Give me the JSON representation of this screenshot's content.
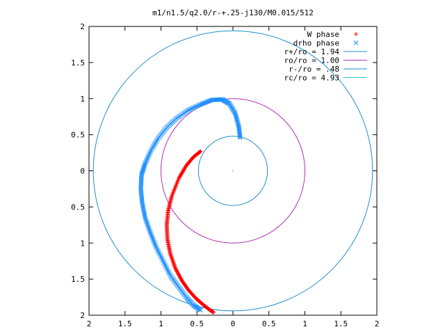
{
  "chart_data": {
    "type": "scatter",
    "title": "m1/n1.5/q2.0/r-+.25-j130/M0.015/512",
    "xlabel": "",
    "ylabel": "",
    "xlim": [
      2,
      -2
    ],
    "ylim": [
      -2,
      2
    ],
    "x_ticks": [
      2,
      1.5,
      1,
      0.5,
      0,
      -0.5,
      -1,
      -1.5,
      -2
    ],
    "y_ticks": [
      -2,
      -1.5,
      -1,
      -0.5,
      0,
      0.5,
      1,
      1.5,
      2
    ],
    "x_tick_labels": [
      "2",
      "1.5",
      "1",
      "0.5",
      "0",
      "0.5",
      "1",
      "1.5",
      "2"
    ],
    "y_tick_labels": [
      "2",
      "1.5",
      "1",
      "0.5",
      "0",
      "0.5",
      "1",
      "1.5",
      "2"
    ],
    "grid": false,
    "legend_position": "top-right",
    "series": [
      {
        "name": "W phase",
        "kind": "points",
        "marker": "+",
        "color": "#ff0000",
        "x": [
          0.45,
          0.55,
          0.65,
          0.75,
          0.85,
          0.9,
          0.92,
          0.91,
          0.87,
          0.8,
          0.71,
          0.62,
          0.52,
          0.42,
          0.33,
          0.27
        ],
        "y": [
          0.27,
          0.19,
          0.07,
          -0.1,
          -0.35,
          -0.55,
          -0.75,
          -0.95,
          -1.15,
          -1.35,
          -1.52,
          -1.65,
          -1.76,
          -1.85,
          -1.92,
          -1.96
        ]
      },
      {
        "name": "drho phase",
        "kind": "points",
        "marker": "x",
        "color": "#1e90ff",
        "x": [
          -0.1,
          -0.08,
          -0.03,
          0.05,
          0.15,
          0.3,
          0.45,
          0.62,
          0.78,
          0.92,
          1.04,
          1.14,
          1.22,
          1.27,
          1.28,
          1.26,
          1.22,
          1.15,
          1.07,
          0.97,
          0.87,
          0.76,
          0.65,
          0.55,
          0.45
        ],
        "y": [
          0.46,
          0.62,
          0.8,
          0.93,
          0.99,
          0.98,
          0.92,
          0.84,
          0.73,
          0.6,
          0.45,
          0.28,
          0.1,
          -0.05,
          -0.25,
          -0.45,
          -0.65,
          -0.85,
          -1.05,
          -1.25,
          -1.45,
          -1.6,
          -1.75,
          -1.86,
          -1.93
        ]
      },
      {
        "name": "r+/ro = 1.94",
        "kind": "circle",
        "radius": 1.94,
        "color": "#1f8fc8"
      },
      {
        "name": "ro/ro = 1.00",
        "kind": "circle",
        "radius": 1.0,
        "color": "#b030b0"
      },
      {
        "name": "r-/ro = .48",
        "kind": "circle",
        "radius": 0.48,
        "color": "#1f8fc8"
      },
      {
        "name": "rc/ro = 4.93",
        "kind": "circle",
        "radius": 4.93,
        "color": "#30c8d0"
      }
    ]
  }
}
